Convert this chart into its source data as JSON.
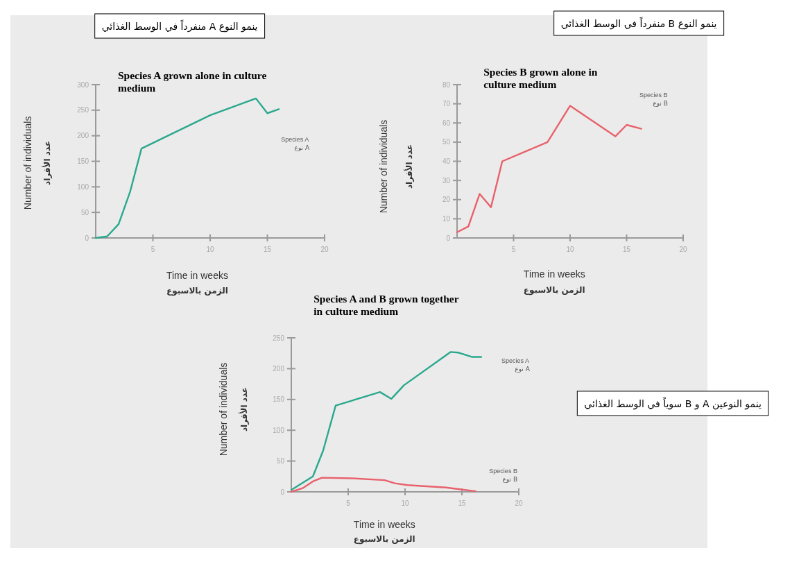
{
  "chart_data": [
    {
      "type": "line",
      "title": "Species A grown alone in culture medium",
      "subtitle": "ينمو النوع A منفرداً في الوسط الغذائي",
      "xlabel": "Time in weeks",
      "ylabel": "Number of individuals",
      "annotations": [
        "عدد الأفراد",
        "الزمن بالاسبوع",
        "نوع A"
      ],
      "series": [
        {
          "name": "Species A",
          "color": "#2aa88e",
          "x": [
            0,
            1,
            2,
            3,
            4,
            10,
            14,
            15,
            16
          ],
          "values": [
            0,
            3,
            27,
            90,
            175,
            240,
            273,
            244,
            252
          ]
        }
      ],
      "xlim": [
        0,
        20
      ],
      "ylim": [
        0,
        300
      ],
      "xticks": [
        5,
        10,
        15,
        20
      ],
      "yticks": [
        0,
        50,
        100,
        150,
        200,
        250,
        300
      ],
      "marker": "none"
    },
    {
      "type": "line",
      "title": "Species B grown alone in culture medium",
      "subtitle": "ينمو النوع B منفرداً في الوسط الغذائي",
      "xlabel": "Time in weeks",
      "ylabel": "Number of individuals",
      "annotations": [
        "عدد الأفراد",
        "الزمن بالاسبوع",
        "نوع B"
      ],
      "series": [
        {
          "name": "Species B",
          "color": "#e8616b",
          "x": [
            0,
            1,
            2,
            3,
            4,
            8,
            10,
            14,
            15,
            16.3
          ],
          "values": [
            3,
            6,
            23,
            16,
            40,
            50,
            69,
            53,
            59,
            57
          ]
        }
      ],
      "xlim": [
        0,
        20
      ],
      "ylim": [
        0,
        80
      ],
      "xticks": [
        5,
        10,
        15,
        20
      ],
      "yticks": [
        0,
        10,
        20,
        30,
        40,
        50,
        60,
        70,
        80
      ],
      "marker": "none"
    },
    {
      "type": "line",
      "title": "Species A and B grown together in culture medium",
      "xlabel": "Time in weeks",
      "ylabel": "Number of individuals",
      "annotations": [
        "عدد الأفراد",
        "الزمن بالاسبوع",
        "نوع A",
        "نوع B",
        "ينمو النوعين A و B سوياً في الوسط الغذائي"
      ],
      "series": [
        {
          "name": "Species A",
          "color": "#2aa88e",
          "x": [
            0,
            1.9,
            2.8,
            3.9,
            7.8,
            8.8,
            9.9,
            14,
            14.7,
            15.9,
            16.7
          ],
          "values": [
            3,
            25,
            67,
            140,
            162,
            151,
            173,
            227,
            226,
            219,
            219
          ]
        },
        {
          "name": "Species B",
          "color": "#e8616b",
          "x": [
            0,
            1,
            1.9,
            2.7,
            5.3,
            8.2,
            9.1,
            10.2,
            13.6,
            14.9,
            16.2
          ],
          "values": [
            0,
            6,
            17,
            23,
            22,
            19,
            14,
            11,
            7,
            4,
            1
          ]
        }
      ],
      "xlim": [
        0,
        20
      ],
      "ylim": [
        0,
        250
      ],
      "xticks": [
        5,
        10,
        15,
        20
      ],
      "yticks": [
        0,
        50,
        100,
        150,
        200,
        250
      ],
      "marker": "none"
    }
  ]
}
